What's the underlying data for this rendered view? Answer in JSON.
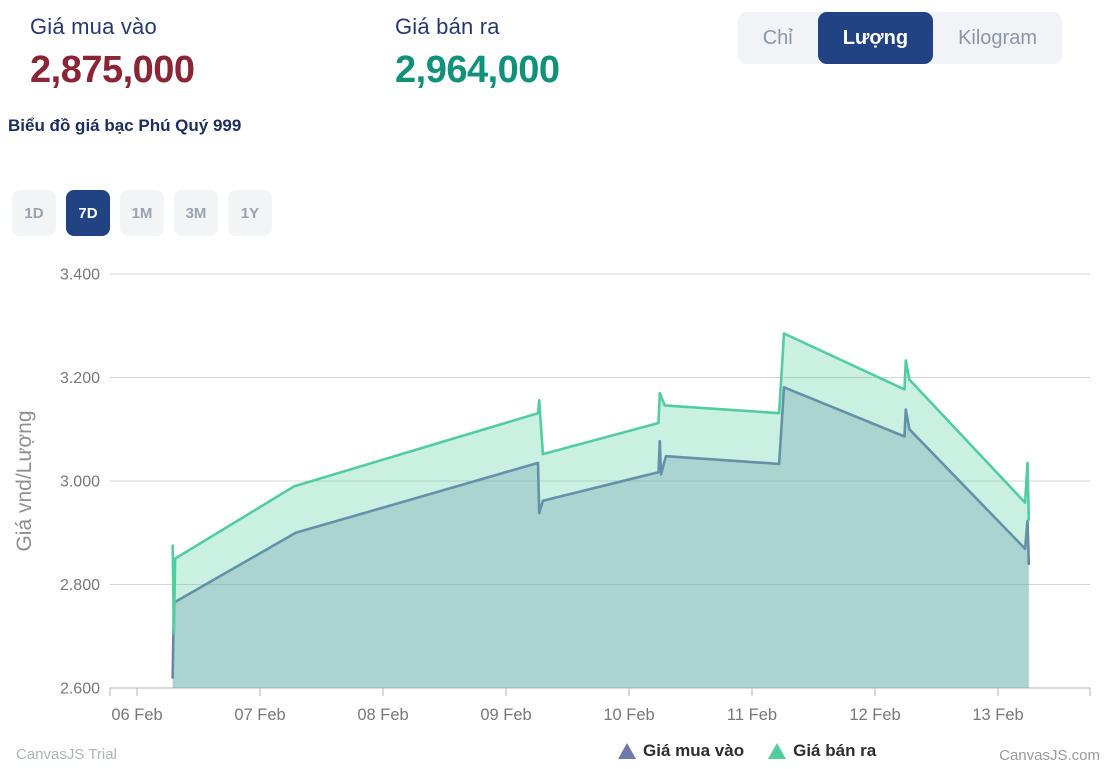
{
  "header": {
    "buy_label": "Giá mua vào",
    "buy_value": "2,875,000",
    "sell_label": "Giá bán ra",
    "sell_value": "2,964,000",
    "chart_title": "Biểu đồ giá bạc Phú Quý 999"
  },
  "unit_toggle": {
    "options": [
      "Chỉ",
      "Lượng",
      "Kilogram"
    ],
    "selected": "Lượng"
  },
  "range_buttons": {
    "options": [
      "1D",
      "7D",
      "1M",
      "3M",
      "1Y"
    ],
    "selected": "7D"
  },
  "colors": {
    "buy_value": "#8B2434",
    "sell_value": "#12917A",
    "accent_navy": "#214283",
    "buy_series": "#6D78AD",
    "sell_series": "#51CDA0"
  },
  "chart_data": {
    "type": "area",
    "title": "",
    "ylabel": "Giá vnd/Lượng",
    "xlabel": "",
    "ylim": [
      2600,
      3400
    ],
    "grid": true,
    "legend_position": "bottom",
    "y_ticks": [
      {
        "value": 3400,
        "label": "3.400"
      },
      {
        "value": 3200,
        "label": "3.200"
      },
      {
        "value": 3000,
        "label": "3.000"
      },
      {
        "value": 2800,
        "label": "2.800"
      },
      {
        "value": 2600,
        "label": "2.600"
      }
    ],
    "x_ticks": [
      "06 Feb",
      "07 Feb",
      "08 Feb",
      "09 Feb",
      "10 Feb",
      "11 Feb",
      "12 Feb",
      "13 Feb"
    ],
    "x_unit": "days since 06 Feb 00:00",
    "series": [
      {
        "name": "Giá mua vào",
        "color": "#6D78AD",
        "fill_opacity": 0.3,
        "points": [
          [
            0.29,
            2620
          ],
          [
            0.3,
            2765
          ],
          [
            1.29,
            2900
          ],
          [
            3.26,
            3035
          ],
          [
            3.27,
            2938
          ],
          [
            3.3,
            2962
          ],
          [
            4.24,
            3017
          ],
          [
            4.25,
            3077
          ],
          [
            4.26,
            3013
          ],
          [
            4.3,
            3048
          ],
          [
            5.22,
            3033
          ],
          [
            5.26,
            3181
          ],
          [
            6.24,
            3086
          ],
          [
            6.25,
            3138
          ],
          [
            6.28,
            3100
          ],
          [
            7.22,
            2869
          ],
          [
            7.24,
            2923
          ],
          [
            7.25,
            2840
          ]
        ]
      },
      {
        "name": "Giá bán ra",
        "color": "#51CDA0",
        "fill_opacity": 0.3,
        "points": [
          [
            0.29,
            2875
          ],
          [
            0.3,
            2706
          ],
          [
            0.31,
            2850
          ],
          [
            1.28,
            2990
          ],
          [
            3.26,
            3131
          ],
          [
            3.27,
            3156
          ],
          [
            3.3,
            3052
          ],
          [
            4.24,
            3112
          ],
          [
            4.25,
            3170
          ],
          [
            4.29,
            3146
          ],
          [
            5.22,
            3131
          ],
          [
            5.26,
            3285
          ],
          [
            6.24,
            3177
          ],
          [
            6.25,
            3233
          ],
          [
            6.28,
            3196
          ],
          [
            7.22,
            2958
          ],
          [
            7.24,
            3035
          ],
          [
            7.25,
            2925
          ]
        ]
      }
    ]
  },
  "footer": {
    "trial": "CanvasJS Trial",
    "credit": "CanvasJS.com"
  }
}
